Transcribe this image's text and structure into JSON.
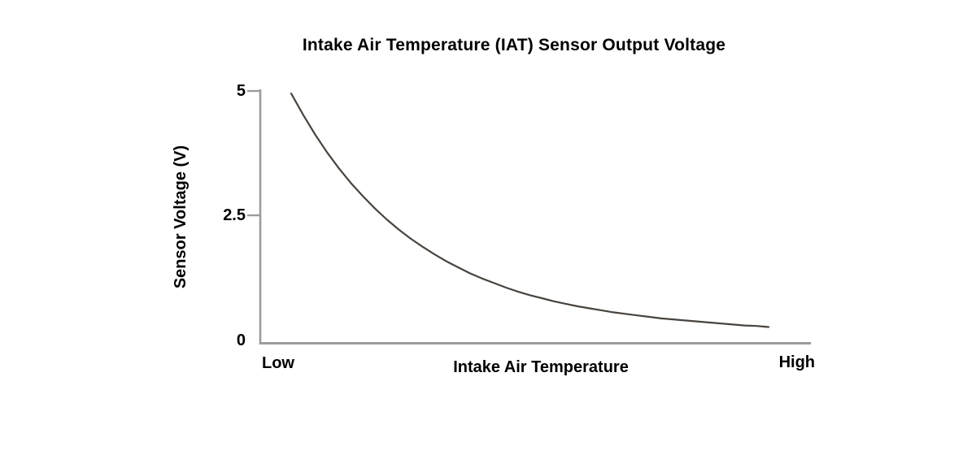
{
  "page": {
    "background": "#ffffff"
  },
  "chart_data": {
    "type": "line",
    "title": "Intake Air Temperature (IAT) Sensor Output Voltage",
    "xlabel": "Intake Air Temperature",
    "ylabel": "Sensor Voltage (V)",
    "ylim": [
      0,
      5
    ],
    "y_ticks": [
      5,
      2.5,
      0
    ],
    "y_tick_labels": [
      "5",
      "2.5",
      "0"
    ],
    "x_tick_labels": {
      "left": "Low",
      "right": "High"
    },
    "grid": false,
    "legend": "none",
    "series": [
      {
        "name": "IAT sensor output voltage",
        "x_fraction": [
          0,
          0.025,
          0.05,
          0.075,
          0.1,
          0.125,
          0.15,
          0.175,
          0.2,
          0.225,
          0.25,
          0.275,
          0.3,
          0.325,
          0.35,
          0.375,
          0.4,
          0.425,
          0.45,
          0.475,
          0.5,
          0.525,
          0.55,
          0.575,
          0.6,
          0.625,
          0.65,
          0.675,
          0.7,
          0.725,
          0.75,
          0.775,
          0.8,
          0.825,
          0.85,
          0.875,
          0.9,
          0.925,
          0.95,
          0.975,
          1
        ],
        "voltage": [
          4.95,
          4.53,
          4.14,
          3.79,
          3.47,
          3.18,
          2.92,
          2.68,
          2.46,
          2.26,
          2.08,
          1.92,
          1.77,
          1.63,
          1.51,
          1.39,
          1.29,
          1.2,
          1.11,
          1.03,
          0.96,
          0.9,
          0.84,
          0.79,
          0.74,
          0.7,
          0.66,
          0.62,
          0.59,
          0.56,
          0.53,
          0.5,
          0.48,
          0.46,
          0.44,
          0.42,
          0.4,
          0.38,
          0.36,
          0.35,
          0.33
        ]
      }
    ],
    "colors": {
      "curve": "#48433e",
      "axis": "#9c9c9c",
      "text": "#000000"
    }
  }
}
